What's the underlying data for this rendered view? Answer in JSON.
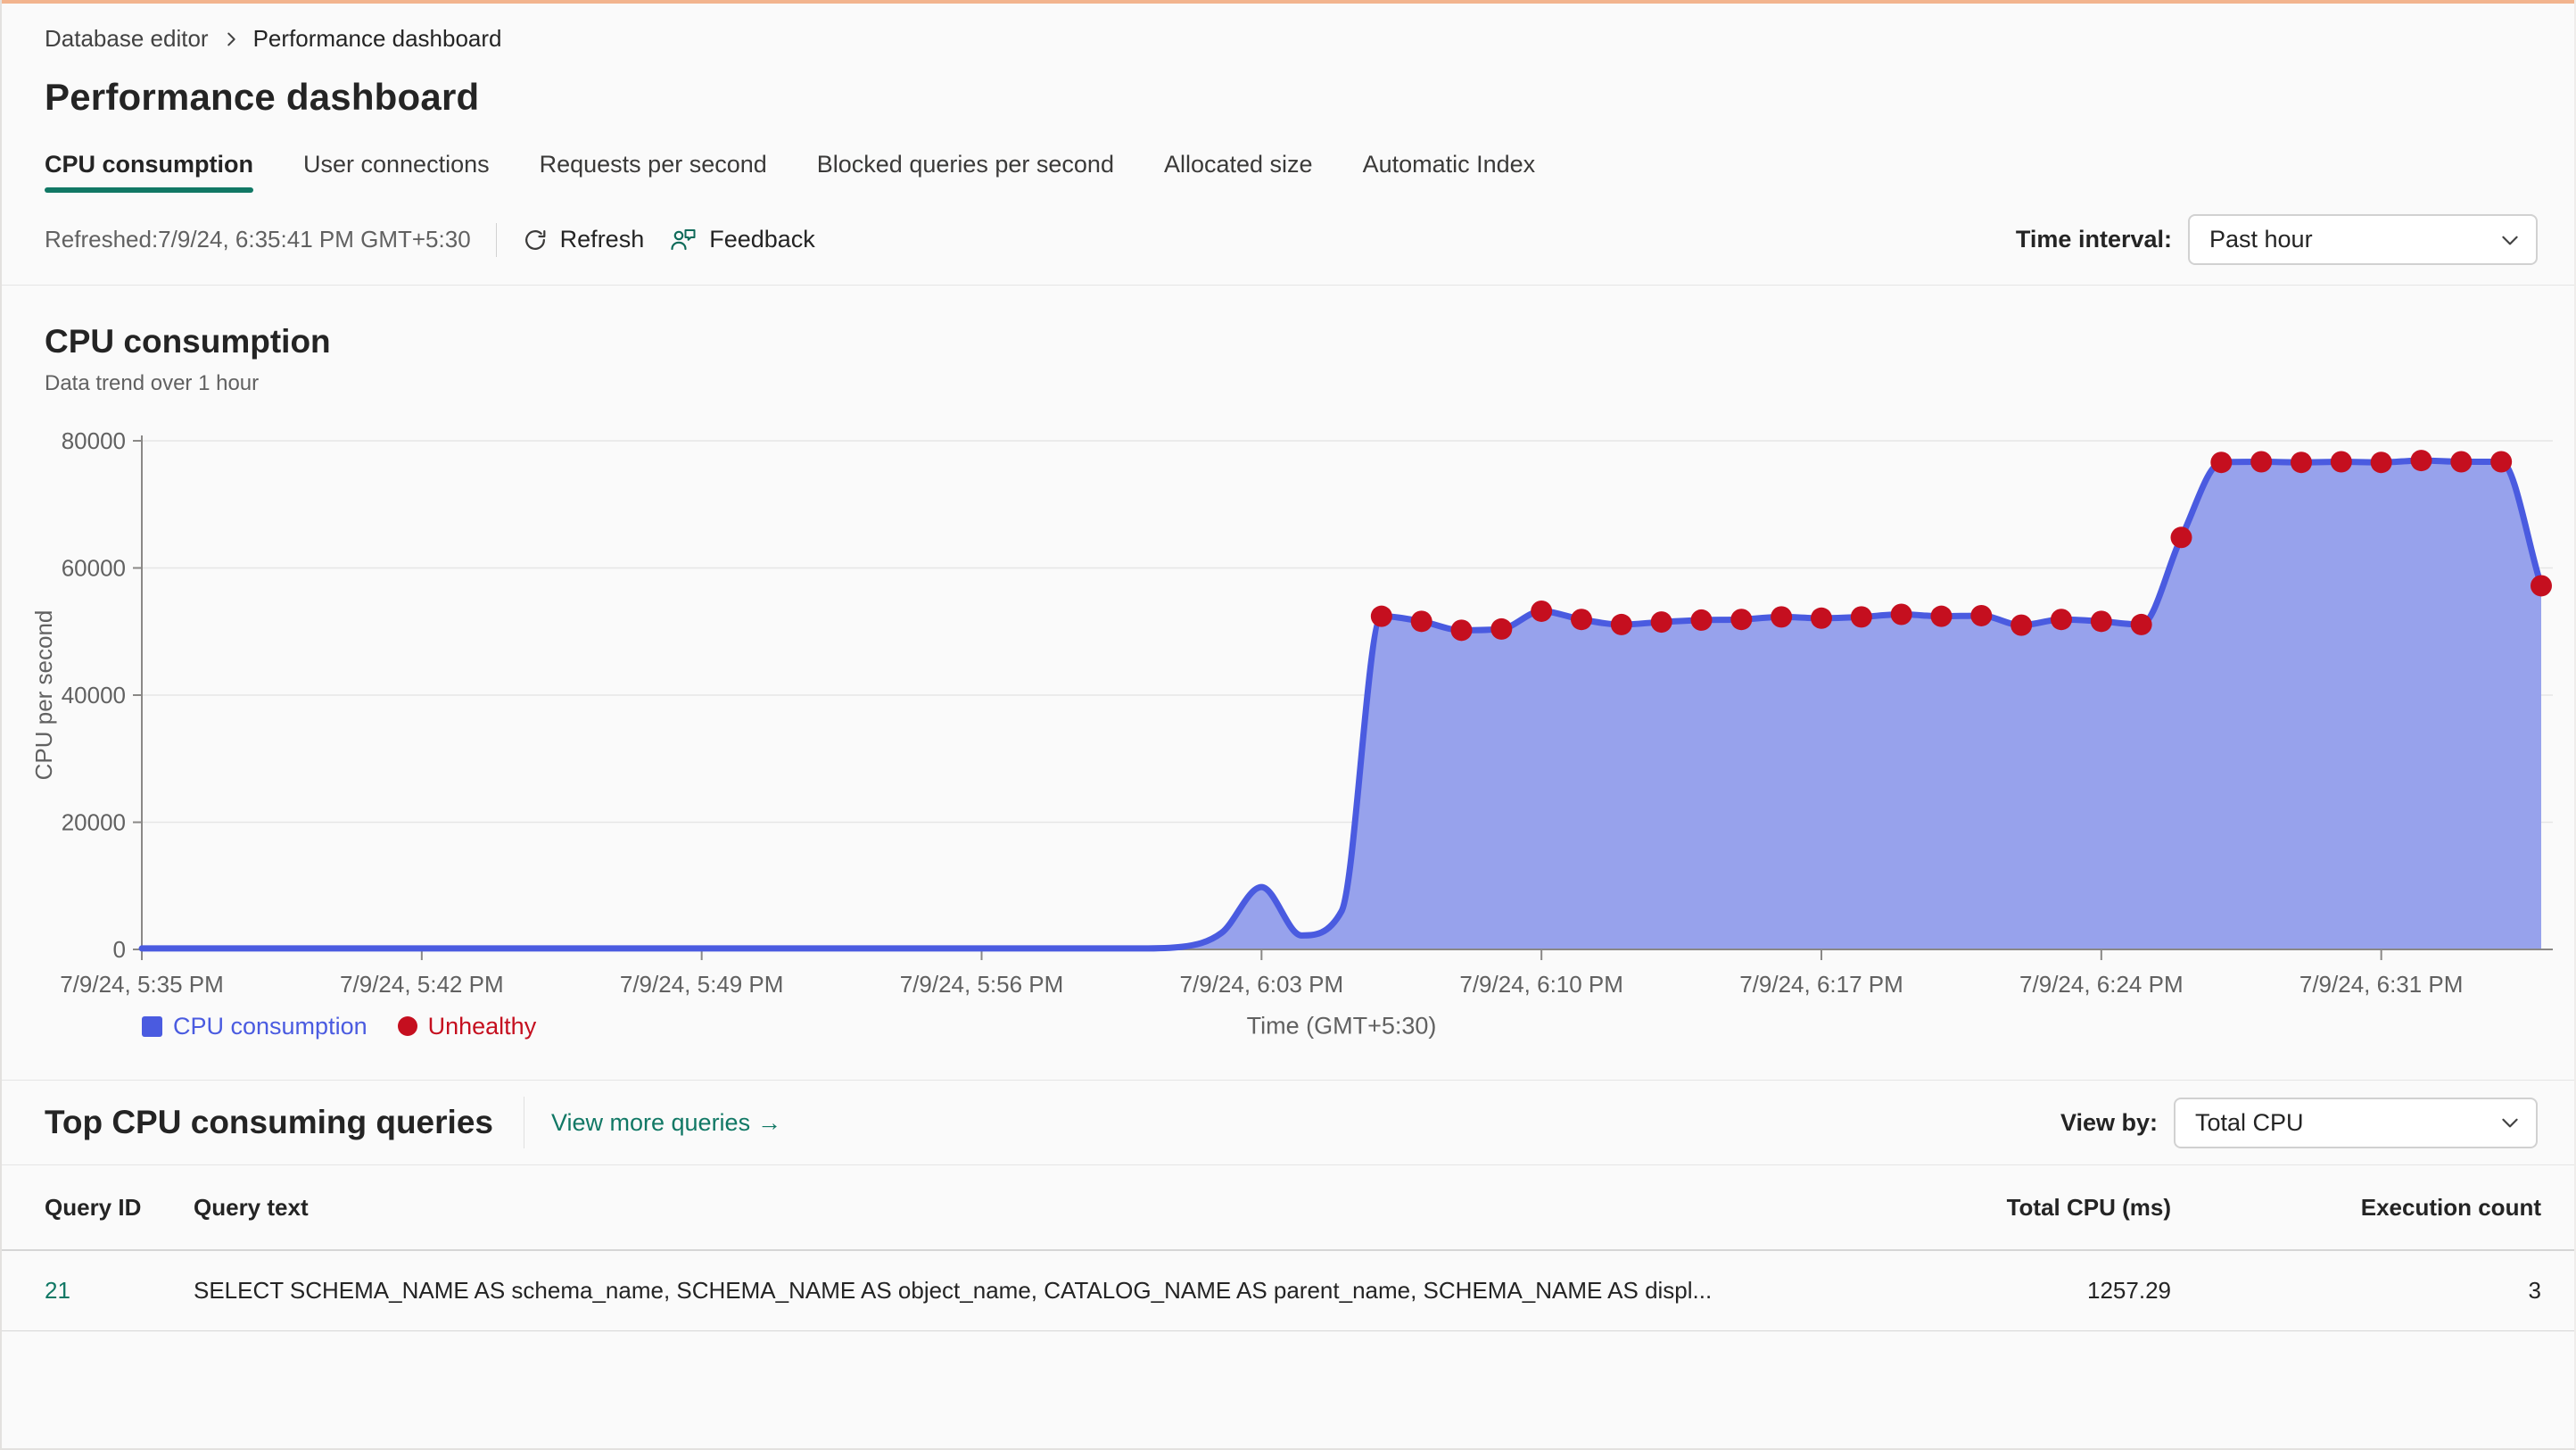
{
  "page": {
    "breadcrumb": {
      "items": [
        "Database editor",
        "Performance dashboard"
      ]
    },
    "title": "Performance dashboard",
    "tabs": [
      {
        "label": "CPU consumption",
        "active": true
      },
      {
        "label": "User connections",
        "active": false
      },
      {
        "label": "Requests per second",
        "active": false
      },
      {
        "label": "Blocked queries per second",
        "active": false
      },
      {
        "label": "Allocated size",
        "active": false
      },
      {
        "label": "Automatic Index",
        "active": false
      }
    ],
    "toolbar": {
      "refreshed_text": "Refreshed:7/9/24, 6:35:41 PM GMT+5:30",
      "refresh_label": "Refresh",
      "feedback_label": "Feedback",
      "time_interval_label": "Time interval:",
      "time_interval_value": "Past hour"
    }
  },
  "chart_section": {
    "title": "CPU consumption",
    "subtitle": "Data trend over 1 hour",
    "legend": {
      "series_label": "CPU consumption",
      "unhealthy_label": "Unhealthy"
    }
  },
  "chart_data": {
    "type": "area",
    "title": "CPU consumption",
    "xlabel": "Time (GMT+5:30)",
    "ylabel": "CPU per second",
    "ylim": [
      0,
      80000
    ],
    "y_ticks": [
      0,
      20000,
      40000,
      60000,
      80000
    ],
    "grid": "horizontal",
    "legend_position": "bottom-left",
    "x_start_label": "7/9/24, 5:35 PM",
    "interval_minutes": 1,
    "x_tick_minutes": [
      0,
      7,
      14,
      21,
      28,
      35,
      42,
      49,
      56
    ],
    "x_tick_labels": [
      "7/9/24, 5:35 PM",
      "7/9/24, 5:42 PM",
      "7/9/24, 5:49 PM",
      "7/9/24, 5:56 PM",
      "7/9/24, 6:03 PM",
      "7/9/24, 6:10 PM",
      "7/9/24, 6:17 PM",
      "7/9/24, 6:24 PM",
      "7/9/24, 6:31 PM"
    ],
    "series": [
      {
        "name": "CPU consumption",
        "values": [
          150,
          150,
          150,
          150,
          150,
          150,
          150,
          150,
          150,
          150,
          150,
          150,
          150,
          150,
          150,
          150,
          150,
          150,
          150,
          150,
          150,
          150,
          150,
          150,
          150,
          150,
          400,
          2600,
          9800,
          2200,
          6000,
          52400,
          51600,
          50200,
          50400,
          53200,
          51900,
          51100,
          51500,
          51800,
          51900,
          52300,
          52100,
          52300,
          52700,
          52400,
          52500,
          51000,
          51900,
          51600,
          51100,
          64800,
          76600,
          76700,
          76600,
          76700,
          76600,
          76900,
          76700,
          76700,
          57200
        ]
      }
    ],
    "unhealthy_points": {
      "label": "Unhealthy",
      "from_index": 31,
      "to_index": 60
    }
  },
  "queries_section": {
    "title": "Top CPU consuming queries",
    "view_more_label": "View more queries",
    "view_more_arrow": "→",
    "view_by_label": "View by:",
    "view_by_value": "Total CPU",
    "table": {
      "columns": [
        "Query ID",
        "Query text",
        "Total CPU (ms)",
        "Execution count"
      ],
      "rows": [
        {
          "query_id": "21",
          "query_text": "SELECT SCHEMA_NAME AS schema_name, SCHEMA_NAME AS object_name, CATALOG_NAME AS parent_name, SCHEMA_NAME AS displ...",
          "total_cpu_ms": "1257.29",
          "execution_count": "3"
        }
      ]
    }
  },
  "colors": {
    "accent_teal": "#117865",
    "top_border_accent": "#f2b48e",
    "chart_line_blue": "#4a5be0",
    "chart_fill_blue": "#97a2ec",
    "unhealthy_red": "#c50f1f",
    "text_primary": "#242424",
    "text_secondary": "#616161"
  }
}
